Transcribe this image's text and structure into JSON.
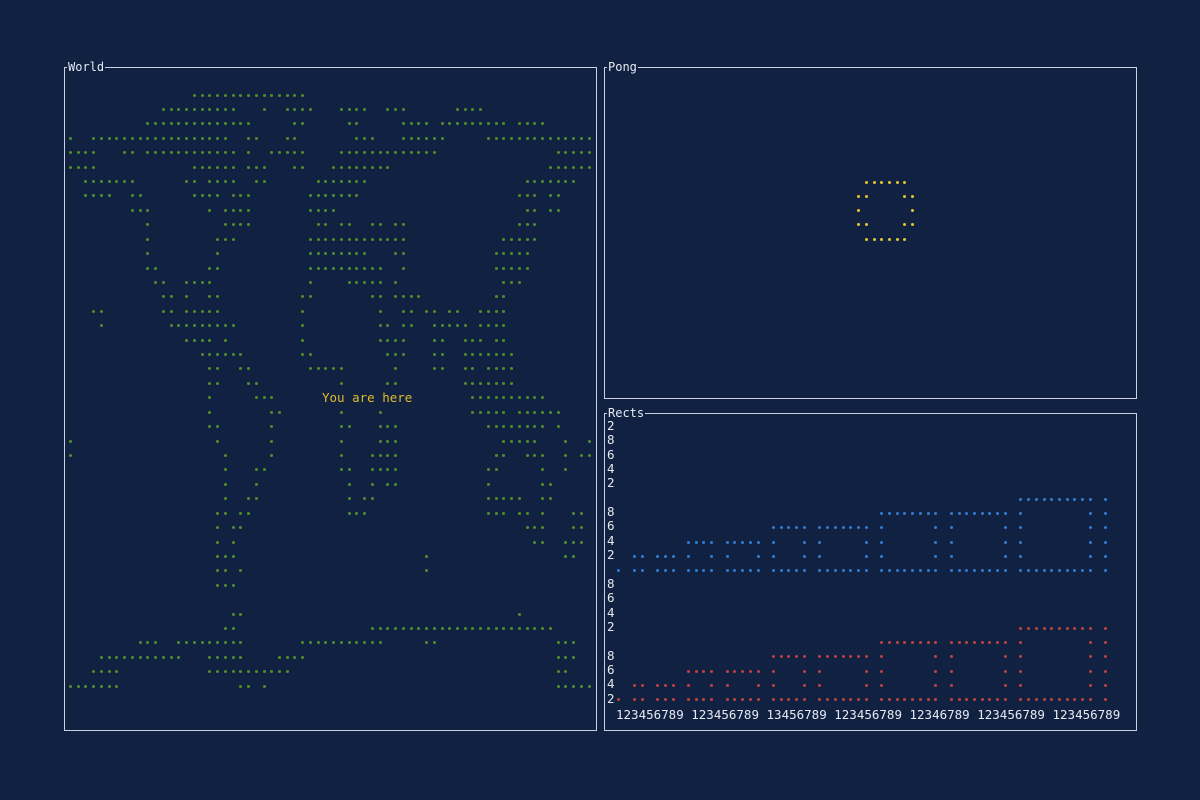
{
  "world": {
    "title": "World",
    "marker_label": "You are here",
    "map_color": "#4f8d2c",
    "marker_color": "#e0bd2a"
  },
  "pong": {
    "title": "Pong",
    "ball_color": "#e3c72c"
  },
  "rects": {
    "title": "Rects",
    "y_labels": [
      "2",
      "8",
      "6",
      "4",
      "2",
      "",
      "8",
      "6",
      "4",
      "2",
      "",
      "8",
      "6",
      "4",
      "2",
      "",
      "8",
      "6",
      "4",
      "2"
    ],
    "x_labels": "123456789 123456789 13456789 123456789 12346789 123456789 123456789",
    "series_colors": {
      "upper": "#2f7bd2",
      "lower": "#c0413f"
    }
  }
}
